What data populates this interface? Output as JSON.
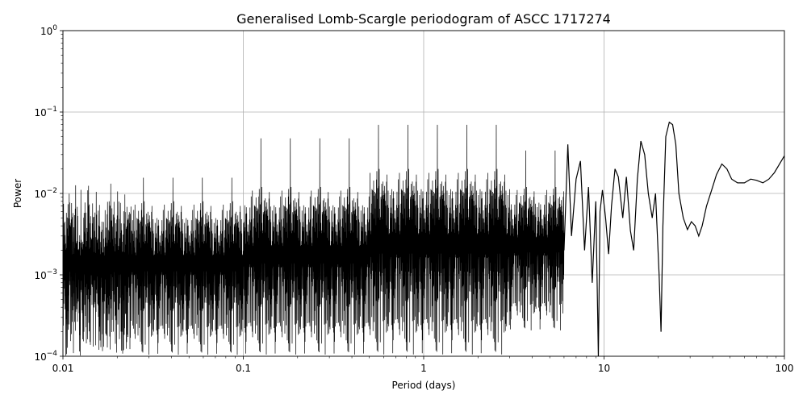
{
  "chart_data": {
    "type": "line",
    "title": "Generalised Lomb-Scargle periodogram of ASCC 1717274",
    "xlabel": "Period (days)",
    "ylabel": "Power",
    "xscale": "log",
    "yscale": "log",
    "xlim": [
      0.01,
      100
    ],
    "ylim": [
      0.0001,
      1
    ],
    "grid": true,
    "line_color": "#000000",
    "x_ticks": [
      {
        "value": 0.01,
        "label": "0.01"
      },
      {
        "value": 0.1,
        "label": "0.1"
      },
      {
        "value": 1,
        "label": "1"
      },
      {
        "value": 10,
        "label": "10"
      },
      {
        "value": 100,
        "label": "100"
      }
    ],
    "y_ticks": [
      {
        "value": 0.0001,
        "base": "10",
        "exp": "−4"
      },
      {
        "value": 0.001,
        "base": "10",
        "exp": "−3"
      },
      {
        "value": 0.01,
        "base": "10",
        "exp": "−2"
      },
      {
        "value": 0.1,
        "base": "10",
        "exp": "−1"
      },
      {
        "value": 1,
        "base": "10",
        "exp": "0"
      }
    ],
    "series": [
      {
        "x": [
          6.0,
          6.3,
          6.6,
          7.0,
          7.4,
          7.8,
          8.2,
          8.6,
          9.0,
          9.3,
          9.5,
          9.8,
          10.2,
          10.6,
          11.0,
          11.5,
          12.0,
          12.7,
          13.3,
          14.0,
          14.6,
          15.3,
          16.0,
          16.8,
          17.6,
          18.5,
          19.3,
          20.2,
          20.7,
          21.2,
          22.0,
          23.0,
          24.0,
          25.0,
          26.0,
          27.5,
          29.0,
          30.5,
          32.0,
          33.5,
          35.0,
          37.0,
          39.5,
          42.0,
          45.0,
          48.0,
          51.0,
          55.0,
          60.0,
          65.0,
          70.0,
          76.0,
          82.0,
          88.0,
          94.0,
          100.0
        ],
        "y": [
          0.002,
          0.04,
          0.003,
          0.015,
          0.025,
          0.002,
          0.012,
          0.0008,
          0.008,
          0.0001,
          0.006,
          0.011,
          0.005,
          0.0018,
          0.007,
          0.02,
          0.016,
          0.005,
          0.016,
          0.0035,
          0.002,
          0.015,
          0.044,
          0.03,
          0.01,
          0.005,
          0.01,
          0.001,
          0.0002,
          0.004,
          0.05,
          0.075,
          0.07,
          0.04,
          0.01,
          0.005,
          0.0036,
          0.0045,
          0.004,
          0.003,
          0.004,
          0.007,
          0.011,
          0.017,
          0.023,
          0.02,
          0.015,
          0.0135,
          0.0135,
          0.015,
          0.0145,
          0.0135,
          0.015,
          0.018,
          0.023,
          0.029
        ]
      }
    ],
    "noise_bands": [
      {
        "x_from": 0.01,
        "x_to": 0.1,
        "floor": 0.0001,
        "top": 0.008,
        "spike_top": 0.016
      },
      {
        "x_from": 0.1,
        "x_to": 0.5,
        "floor": 0.0001,
        "top": 0.012,
        "spike_top": 0.05
      },
      {
        "x_from": 0.5,
        "x_to": 3,
        "floor": 0.0001,
        "top": 0.02,
        "spike_top": 0.073
      },
      {
        "x_from": 3,
        "x_to": 6,
        "floor": 0.0002,
        "top": 0.012,
        "spike_top": 0.035
      }
    ]
  }
}
